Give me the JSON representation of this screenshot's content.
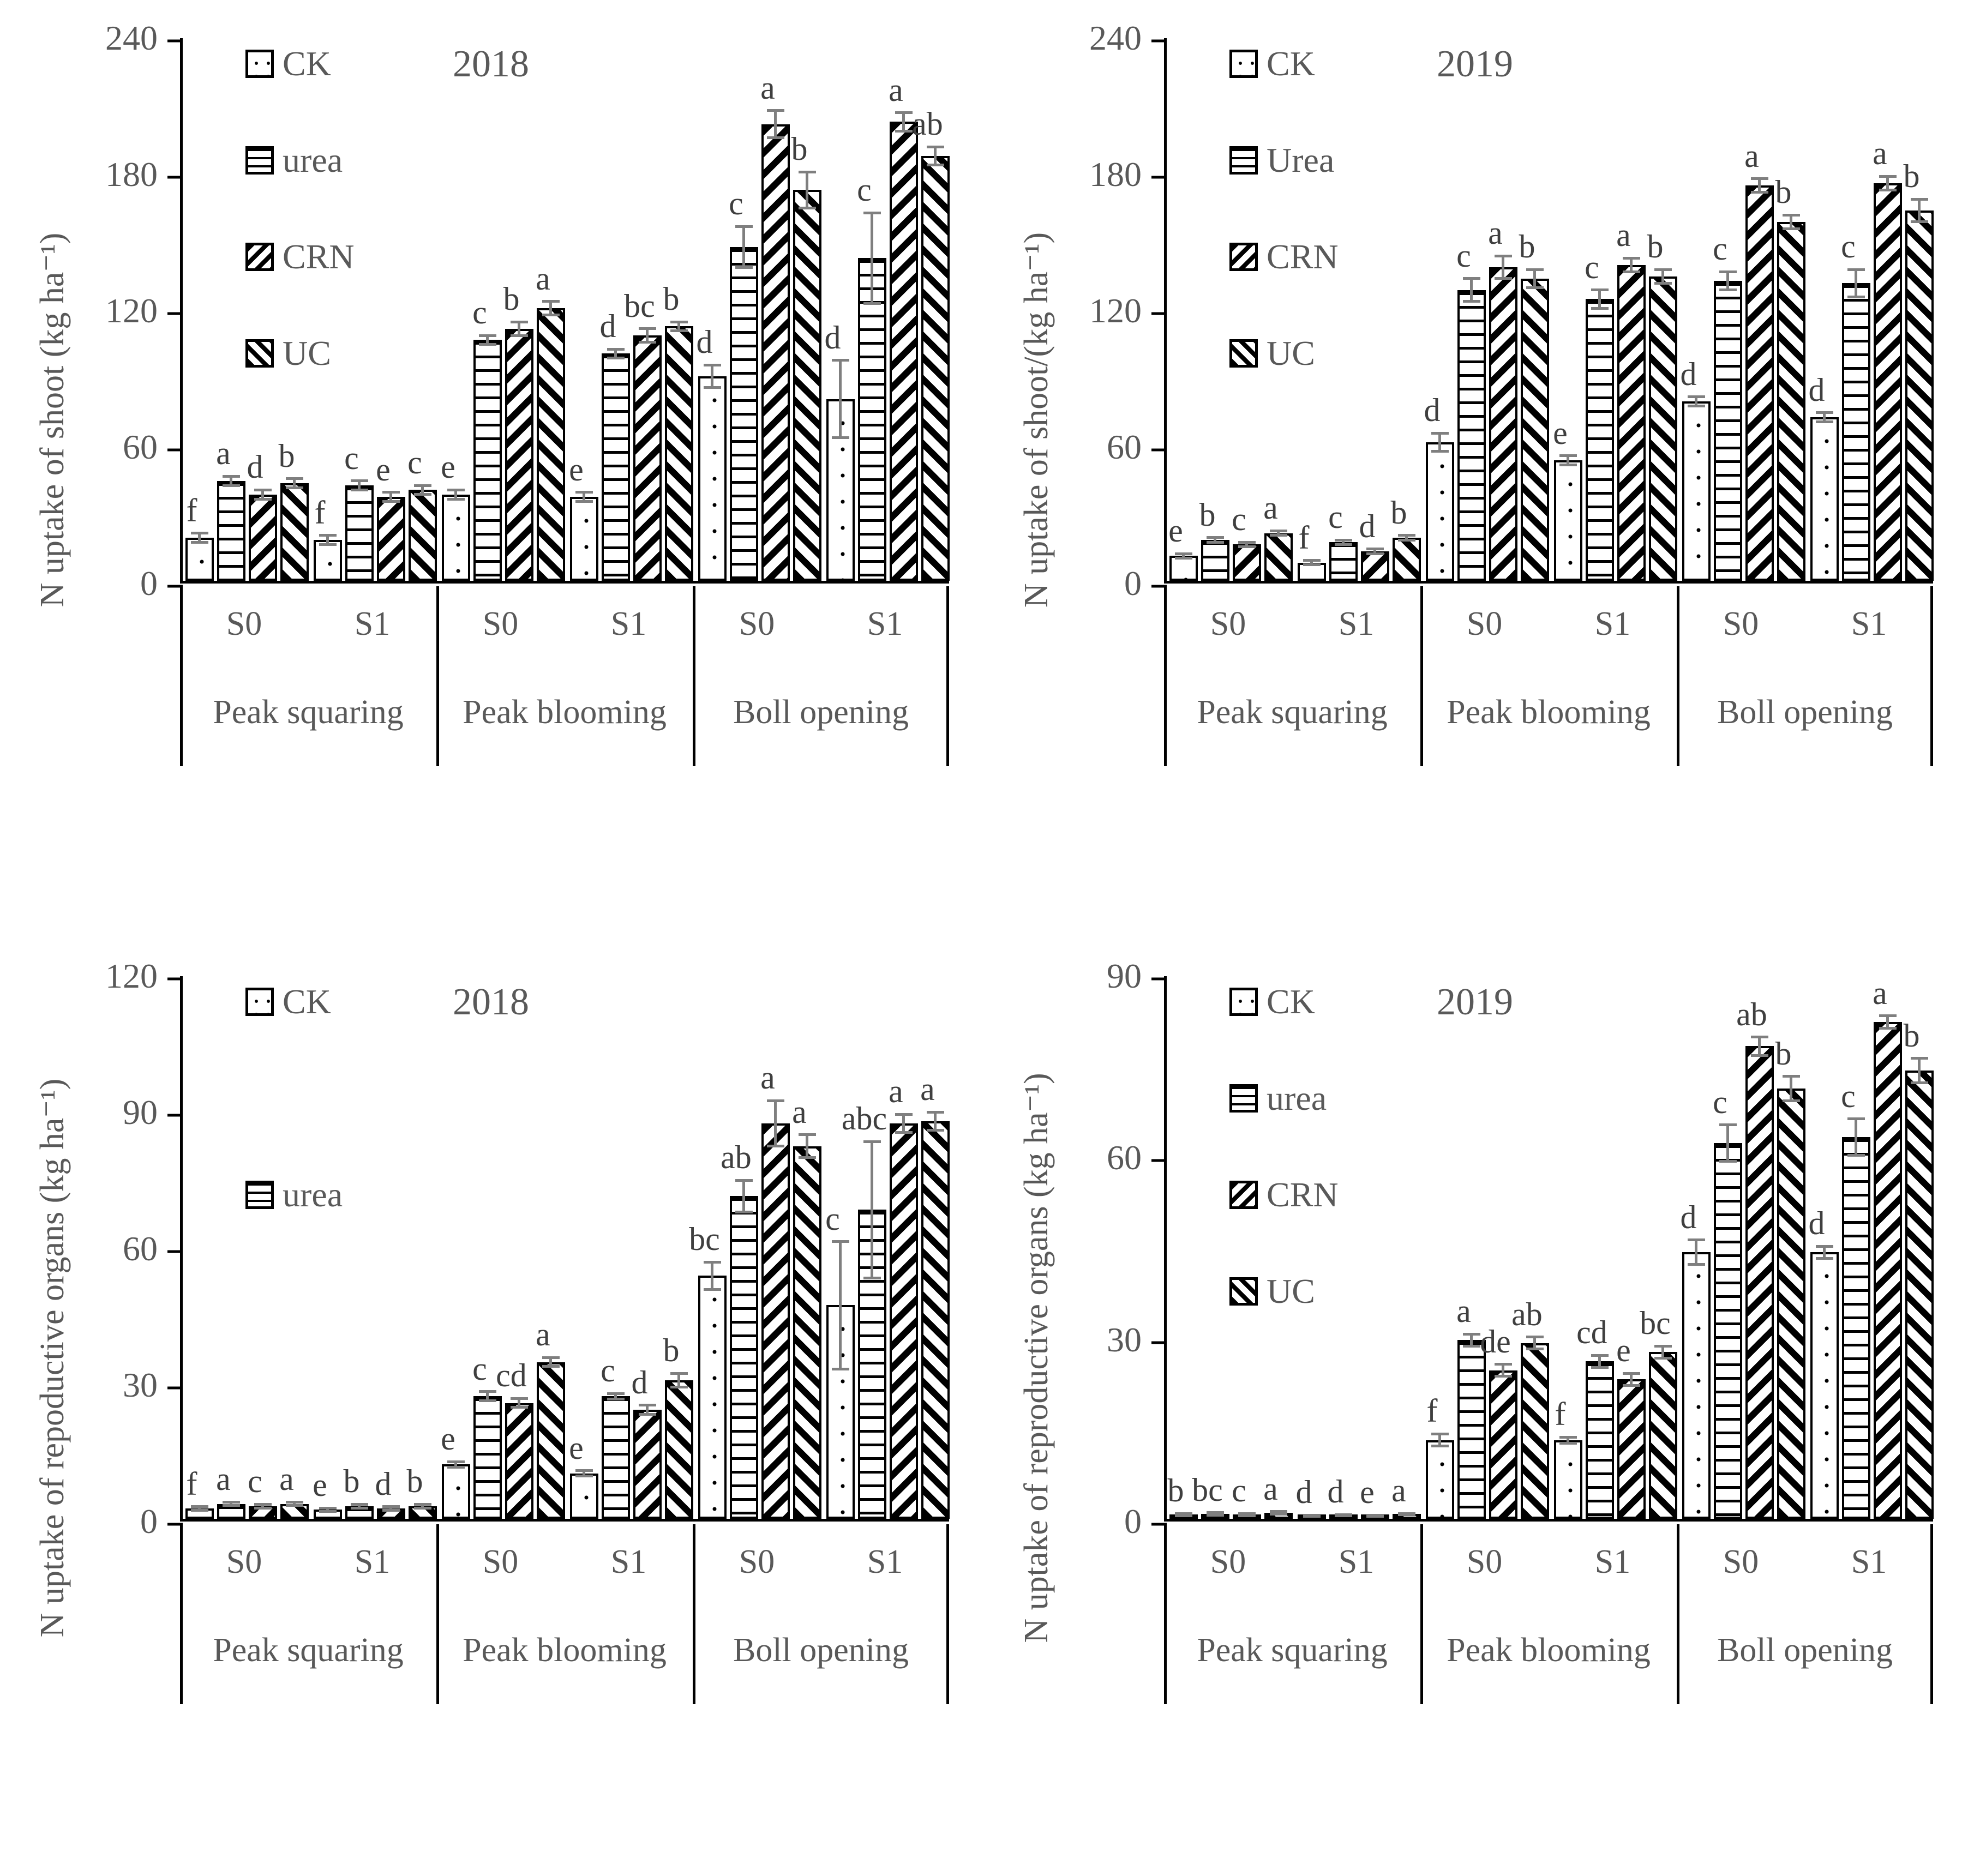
{
  "figure": {
    "background": "#ffffff",
    "text_color": "#595959",
    "annotation_color": "#3f3f3f",
    "error_bar_color": "#7f7f7f",
    "bar_outline_color": "#000000"
  },
  "chart_data": [
    {
      "type": "bar",
      "title": "2018",
      "ylabel": "N uptake of shoot (kg ha⁻¹)",
      "ylim": [
        0,
        240
      ],
      "yticks": [
        0,
        60,
        120,
        180,
        240
      ],
      "grid": false,
      "legend_position": "top-left-inside",
      "stages": [
        "Peak squaring",
        "Peak blooming",
        "Boll opening"
      ],
      "subgroups": [
        "S0",
        "S1",
        "S0",
        "S1",
        "S0",
        "S1"
      ],
      "legend": [
        "CK",
        "urea",
        "CRN",
        "UC"
      ],
      "series": [
        {
          "name": "CK",
          "pattern": "dots",
          "values": [
            19,
            18,
            38,
            37,
            90,
            80
          ],
          "errors": [
            2,
            2,
            2,
            2,
            5,
            17
          ],
          "letters": [
            "f",
            "f",
            "e",
            "e",
            "d",
            "d"
          ]
        },
        {
          "name": "urea",
          "pattern": "hlines",
          "values": [
            44,
            42,
            106,
            100,
            147,
            142
          ],
          "errors": [
            2,
            2,
            2,
            2,
            9,
            20
          ],
          "letters": [
            "a",
            "c",
            "c",
            "d",
            "c",
            "c"
          ]
        },
        {
          "name": "CRN",
          "pattern": "diag",
          "values": [
            38,
            37,
            111,
            108,
            201,
            202
          ],
          "errors": [
            2,
            2,
            3,
            3,
            6,
            4
          ],
          "letters": [
            "d",
            "e",
            "b",
            "bc",
            "a",
            "a"
          ]
        },
        {
          "name": "UC",
          "pattern": "rdiag",
          "values": [
            43,
            40,
            120,
            112,
            172,
            187
          ],
          "errors": [
            2,
            2,
            3,
            2,
            8,
            4
          ],
          "letters": [
            "b",
            "c",
            "a",
            "b",
            "b",
            "ab"
          ]
        }
      ]
    },
    {
      "type": "bar",
      "title": "2019",
      "ylabel": "N uptake of shoot/(kg ha⁻¹)",
      "ylim": [
        0,
        240
      ],
      "yticks": [
        0,
        60,
        120,
        180,
        240
      ],
      "grid": false,
      "legend_position": "top-left-inside",
      "stages": [
        "Peak squaring",
        "Peak blooming",
        "Boll opening"
      ],
      "subgroups": [
        "S0",
        "S1",
        "S0",
        "S1",
        "S0",
        "S1"
      ],
      "legend": [
        "CK",
        "Urea",
        "CRN",
        "UC"
      ],
      "series": [
        {
          "name": "CK",
          "pattern": "dots",
          "values": [
            11,
            8,
            61,
            53,
            79,
            72
          ],
          "errors": [
            1,
            1,
            4,
            2,
            2,
            2
          ],
          "letters": [
            "e",
            "f",
            "d",
            "e",
            "d",
            "d"
          ]
        },
        {
          "name": "Urea",
          "pattern": "hlines",
          "values": [
            18,
            17,
            128,
            124,
            132,
            131
          ],
          "errors": [
            1,
            1,
            5,
            4,
            4,
            6
          ],
          "letters": [
            "b",
            "c",
            "c",
            "c",
            "c",
            "c"
          ]
        },
        {
          "name": "CRN",
          "pattern": "diag",
          "values": [
            16,
            13,
            138,
            139,
            174,
            175
          ],
          "errors": [
            1,
            1,
            5,
            3,
            3,
            3
          ],
          "letters": [
            "c",
            "d",
            "a",
            "a",
            "a",
            "a"
          ]
        },
        {
          "name": "UC",
          "pattern": "rdiag",
          "values": [
            21,
            19,
            133,
            134,
            158,
            163
          ],
          "errors": [
            1,
            1,
            4,
            3,
            3,
            5
          ],
          "letters": [
            "a",
            "b",
            "b",
            "b",
            "b",
            "b"
          ]
        }
      ]
    },
    {
      "type": "bar",
      "title": "2018",
      "ylabel": "N uptake of repoductive organs (kg ha⁻¹)",
      "ylim": [
        0,
        120
      ],
      "yticks": [
        0,
        30,
        60,
        90,
        120
      ],
      "grid": false,
      "legend_position": "top-left-inside",
      "stages": [
        "Peak squaring",
        "Peak blooming",
        "Boll opening"
      ],
      "subgroups": [
        "S0",
        "S1",
        "S0",
        "S1",
        "S0",
        "S1"
      ],
      "legend": [
        "CK",
        "urea"
      ],
      "series": [
        {
          "name": "CK",
          "pattern": "dots",
          "values": [
            2.3,
            2,
            12,
            10,
            53.5,
            47
          ],
          "errors": [
            0.4,
            0.4,
            0.6,
            0.6,
            3,
            14
          ],
          "letters": [
            "f",
            "e",
            "e",
            "e",
            "bc",
            "c"
          ]
        },
        {
          "name": "urea",
          "pattern": "hlines",
          "values": [
            3.3,
            2.8,
            27,
            27,
            71,
            68
          ],
          "errors": [
            0.4,
            0.4,
            1,
            0.6,
            3.5,
            15
          ],
          "letters": [
            "a",
            "b",
            "c",
            "c",
            "ab",
            "abc"
          ]
        },
        {
          "name": "CRN",
          "pattern": "diag",
          "values": [
            2.8,
            2.3,
            25.5,
            24,
            87,
            87
          ],
          "errors": [
            0.4,
            0.4,
            1,
            1,
            5,
            2
          ],
          "letters": [
            "c",
            "d",
            "cd",
            "d",
            "a",
            "a"
          ]
        },
        {
          "name": "UC",
          "pattern": "rdiag",
          "values": [
            3.3,
            2.8,
            34.5,
            30.5,
            82,
            87.5
          ],
          "errors": [
            0.4,
            0.4,
            1,
            1.5,
            2.5,
            2
          ],
          "letters": [
            "a",
            "b",
            "a",
            "b",
            "a",
            "a"
          ]
        }
      ]
    },
    {
      "type": "bar",
      "title": "2019",
      "ylabel": "N uptake of reproductive organs (kg ha⁻¹)",
      "ylim": [
        0,
        90
      ],
      "yticks": [
        0,
        30,
        60,
        90
      ],
      "grid": false,
      "legend_position": "top-left-inside",
      "stages": [
        "Peak squaring",
        "Peak blooming",
        "Boll opening"
      ],
      "subgroups": [
        "S0",
        "S1",
        "S0",
        "S1",
        "S0",
        "S1"
      ],
      "legend": [
        "CK",
        "urea",
        "CRN",
        "UC"
      ],
      "series": [
        {
          "name": "CK",
          "pattern": "dots",
          "values": [
            0.7,
            0.5,
            13,
            13,
            44,
            44
          ],
          "errors": [
            0.2,
            0.1,
            1,
            0.5,
            2,
            1
          ],
          "letters": [
            "b",
            "d",
            "f",
            "f",
            "d",
            "d"
          ]
        },
        {
          "name": "urea",
          "pattern": "hlines",
          "values": [
            0.8,
            0.6,
            29.5,
            26,
            62,
            63
          ],
          "errors": [
            0.2,
            0.1,
            1,
            1,
            3,
            3
          ],
          "letters": [
            "bc",
            "d",
            "a",
            "cd",
            "c",
            "c"
          ]
        },
        {
          "name": "CRN",
          "pattern": "diag",
          "values": [
            0.7,
            0.5,
            24.5,
            23,
            78,
            82
          ],
          "errors": [
            0.2,
            0.1,
            1,
            1,
            1.5,
            1
          ],
          "letters": [
            "c",
            "e",
            "de",
            "e",
            "ab",
            "a"
          ]
        },
        {
          "name": "UC",
          "pattern": "rdiag",
          "values": [
            1.0,
            0.8,
            29,
            27.5,
            71,
            74
          ],
          "errors": [
            0.2,
            0.1,
            1,
            1,
            2,
            2
          ],
          "letters": [
            "a",
            "a",
            "ab",
            "bc",
            "b",
            "b"
          ]
        }
      ]
    }
  ]
}
